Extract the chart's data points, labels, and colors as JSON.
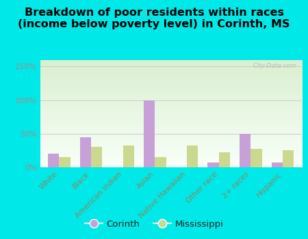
{
  "title": "Breakdown of poor residents within races\n(income below poverty level) in Corinth, MS",
  "categories": [
    "White",
    "Black",
    "American Indian",
    "Asian",
    "Native Hawaiian",
    "Other race",
    "2+ races",
    "Hispanic"
  ],
  "corinth_values": [
    20,
    45,
    0,
    100,
    0,
    7,
    50,
    7
  ],
  "mississippi_values": [
    15,
    30,
    33,
    15,
    33,
    22,
    27,
    25
  ],
  "corinth_color": "#c8a0d8",
  "mississippi_color": "#ccd890",
  "bg_color": "#00e8e8",
  "plot_bg_top": "#daefd0",
  "plot_bg_bottom": "#f8fff8",
  "ytick_color": "#aa8888",
  "xtick_color": "#888866",
  "ylim": [
    0,
    160
  ],
  "yticks": [
    0,
    50,
    100,
    150
  ],
  "ytick_labels": [
    "0%",
    "50%",
    "100%",
    "150%"
  ],
  "bar_width": 0.35,
  "title_fontsize": 11.5,
  "tick_fontsize": 8,
  "legend_fontsize": 9.5,
  "watermark": "City-Data.com"
}
